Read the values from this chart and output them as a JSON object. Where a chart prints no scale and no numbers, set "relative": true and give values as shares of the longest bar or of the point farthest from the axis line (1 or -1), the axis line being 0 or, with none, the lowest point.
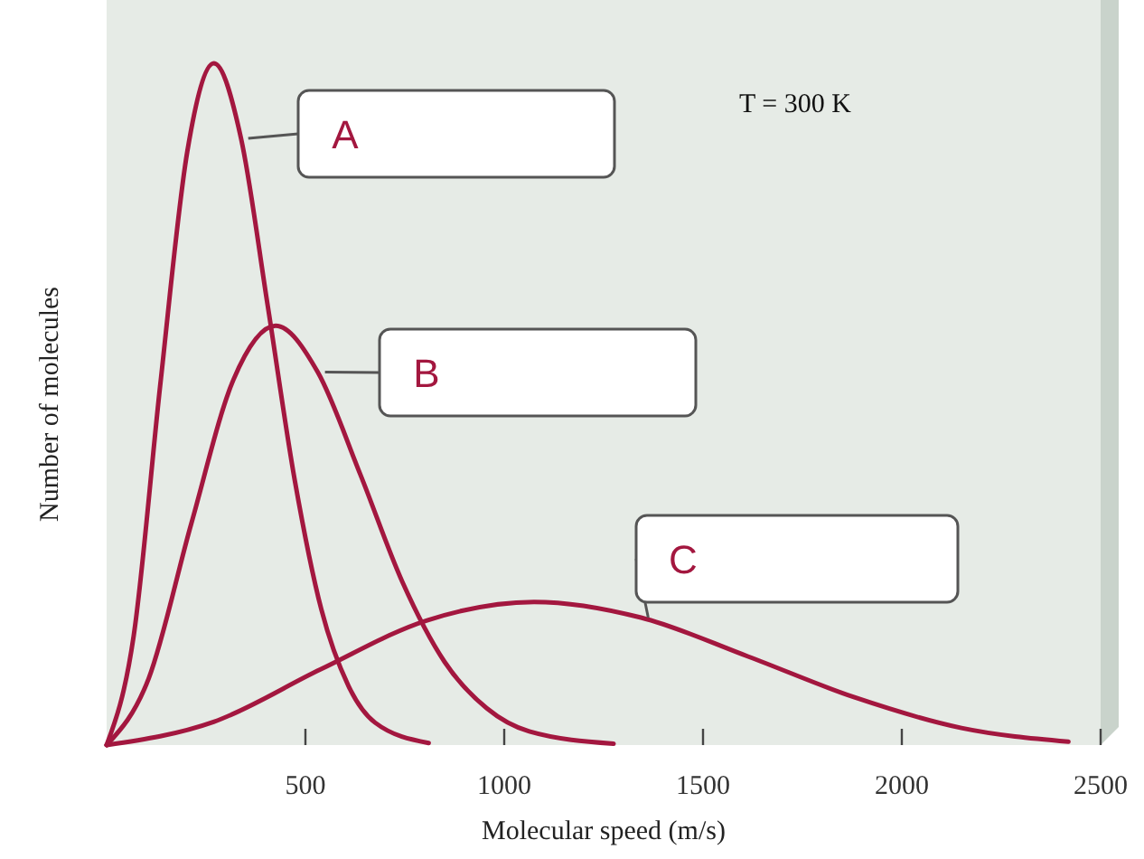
{
  "chart_data": {
    "type": "line",
    "relative": true,
    "xlabel": "Molecular speed (m/s)",
    "ylabel": "Number of molecules",
    "annotations": [
      "T = 300 K"
    ],
    "xlim": [
      0,
      2500
    ],
    "xticks": [
      500,
      1000,
      1500,
      2000,
      2500
    ],
    "grid": false,
    "line_style": "solid",
    "series": [
      {
        "name": "A",
        "color": "#a3173f",
        "x": [
          0,
          68,
          135,
          203,
          270,
          338,
          405,
          473,
          540,
          608,
          675,
          810
        ],
        "values": [
          0,
          0.16,
          0.529,
          0.871,
          1,
          0.89,
          0.645,
          0.389,
          0.199,
          0.087,
          0.033,
          0.003
        ]
      },
      {
        "name": "B",
        "color": "#a3173f",
        "x": [
          0,
          106,
          213,
          319,
          425,
          531,
          638,
          744,
          850,
          956,
          1063,
          1275
        ],
        "values": [
          0,
          0.098,
          0.325,
          0.536,
          0.615,
          0.547,
          0.397,
          0.239,
          0.122,
          0.054,
          0.02,
          0.002
        ]
      },
      {
        "name": "C",
        "color": "#a3173f",
        "x": [
          0,
          269,
          538,
          806,
          1075,
          1344,
          1613,
          1881,
          2150,
          2419
        ],
        "values": [
          0,
          0.034,
          0.111,
          0.183,
          0.21,
          0.187,
          0.13,
          0.07,
          0.025,
          0.005
        ]
      }
    ]
  }
}
